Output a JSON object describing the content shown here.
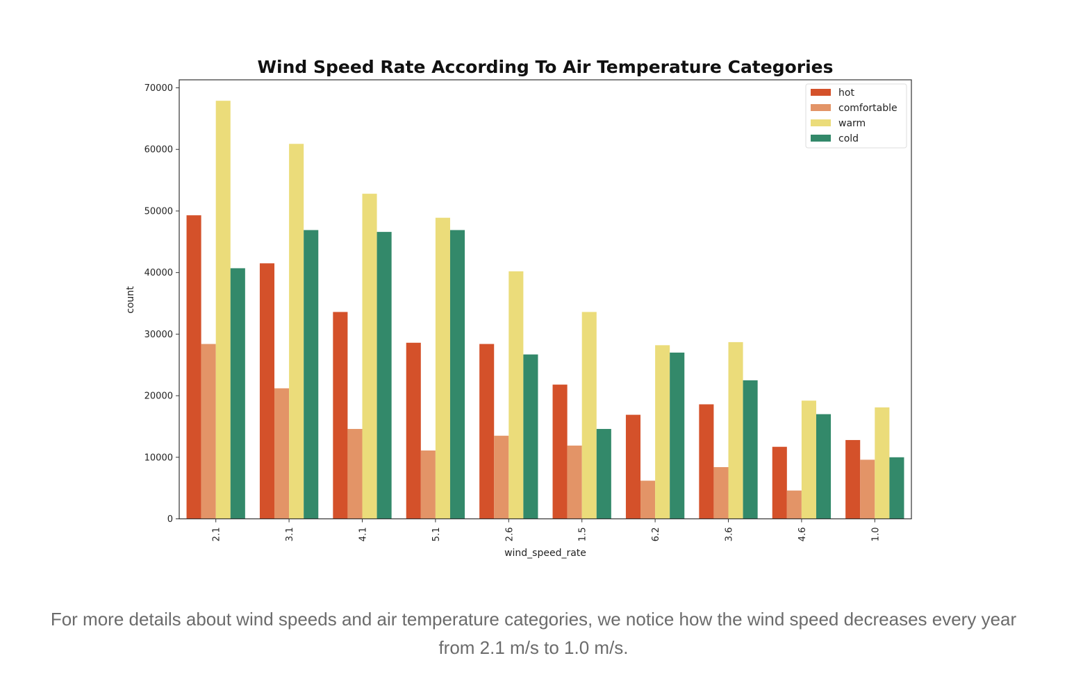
{
  "chart_data": {
    "type": "bar",
    "title": "Wind Speed Rate According To Air Temperature Categories",
    "xlabel": "wind_speed_rate",
    "ylabel": "count",
    "ylim": [
      0,
      71300
    ],
    "yticks": [
      0,
      10000,
      20000,
      30000,
      40000,
      50000,
      60000,
      70000
    ],
    "ytick_labels": [
      "0",
      "10000",
      "20000",
      "30000",
      "40000",
      "50000",
      "60000",
      "70000"
    ],
    "categories": [
      "2.1",
      "3.1",
      "4.1",
      "5.1",
      "2.6",
      "1.5",
      "6.2",
      "3.6",
      "4.6",
      "1.0"
    ],
    "grid": false,
    "legend_position": "top-right",
    "series": [
      {
        "name": "hot",
        "color": "#d4512a",
        "values": [
          49300,
          41500,
          33600,
          28600,
          28400,
          21800,
          16900,
          18600,
          11700,
          12800
        ]
      },
      {
        "name": "comfortable",
        "color": "#e39467",
        "values": [
          28400,
          21200,
          14600,
          11100,
          13500,
          11900,
          6200,
          8400,
          4600,
          9600
        ]
      },
      {
        "name": "warm",
        "color": "#ebdc7a",
        "values": [
          67900,
          60900,
          52800,
          48900,
          40200,
          33600,
          28200,
          28700,
          19200,
          18100
        ]
      },
      {
        "name": "cold",
        "color": "#33896a",
        "values": [
          40700,
          46900,
          46600,
          46900,
          26700,
          14600,
          27000,
          22500,
          17000,
          10000
        ]
      }
    ]
  },
  "caption": "For more details about wind speeds and air temperature categories, we notice how the wind speed decreases every year from 2.1 m/s to 1.0 m/s."
}
